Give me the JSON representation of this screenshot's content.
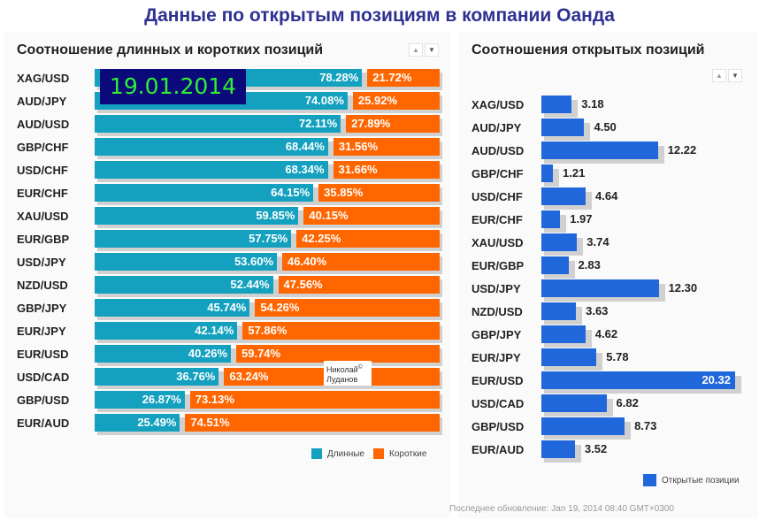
{
  "page": {
    "title": "Данные по открытым позициям в компании Оанда",
    "date_label": "19.01.2014",
    "watermark_line1": "Николай",
    "watermark_line2": "Луданов",
    "watermark_symbol": "©",
    "footer": "Последнее обновление: Jan 19, 2014 08:40 GMT+0300"
  },
  "arrows": {
    "up": "▲",
    "down": "▼"
  },
  "colors": {
    "long": "#14a1bf",
    "short": "#ff6600",
    "open": "#2067dc",
    "title": "#2e3192",
    "shadow": "#d0d0d0"
  },
  "chart_data": [
    {
      "type": "bar",
      "orientation": "horizontal-stacked-100",
      "title": "Соотношение длинных и коротких позиций",
      "categories": [
        "XAG/USD",
        "AUD/JPY",
        "AUD/USD",
        "GBP/CHF",
        "USD/CHF",
        "EUR/CHF",
        "XAU/USD",
        "EUR/GBP",
        "USD/JPY",
        "NZD/USD",
        "GBP/JPY",
        "EUR/JPY",
        "EUR/USD",
        "USD/CAD",
        "GBP/USD",
        "EUR/AUD"
      ],
      "series": [
        {
          "name": "Длинные",
          "values": [
            78.28,
            74.08,
            72.11,
            68.44,
            68.34,
            64.15,
            59.85,
            57.75,
            53.6,
            52.44,
            45.74,
            42.14,
            40.26,
            36.76,
            26.87,
            25.49
          ]
        },
        {
          "name": "Короткие",
          "values": [
            21.72,
            25.92,
            27.89,
            31.56,
            31.66,
            35.85,
            40.15,
            42.25,
            46.4,
            47.56,
            54.26,
            57.86,
            59.74,
            63.24,
            73.13,
            74.51
          ]
        }
      ],
      "labels_long": [
        "78.28%",
        "74.08%",
        "72.11%",
        "68.44%",
        "68.34%",
        "64.15%",
        "59.85%",
        "57.75%",
        "53.60%",
        "52.44%",
        "45.74%",
        "42.14%",
        "40.26%",
        "36.76%",
        "26.87%",
        "25.49%"
      ],
      "labels_short": [
        "21.72%",
        "25.92%",
        "27.89%",
        "31.56%",
        "31.66%",
        "35.85%",
        "40.15%",
        "42.25%",
        "46.40%",
        "47.56%",
        "54.26%",
        "57.86%",
        "59.74%",
        "63.24%",
        "73.13%",
        "74.51%"
      ],
      "legend": [
        "Длинные",
        "Короткие"
      ],
      "legend_position": "bottom-right",
      "xlim": [
        0,
        100
      ],
      "grid": false
    },
    {
      "type": "bar",
      "orientation": "horizontal",
      "title": "Соотношения открытых позиций",
      "categories": [
        "XAG/USD",
        "AUD/JPY",
        "AUD/USD",
        "GBP/CHF",
        "USD/CHF",
        "EUR/CHF",
        "XAU/USD",
        "EUR/GBP",
        "USD/JPY",
        "NZD/USD",
        "GBP/JPY",
        "EUR/JPY",
        "EUR/USD",
        "USD/CAD",
        "GBP/USD",
        "EUR/AUD"
      ],
      "series": [
        {
          "name": "Открытые позиции",
          "values": [
            3.18,
            4.5,
            12.22,
            1.21,
            4.64,
            1.97,
            3.74,
            2.83,
            12.3,
            3.63,
            4.62,
            5.78,
            20.32,
            6.82,
            8.73,
            3.52
          ]
        }
      ],
      "value_labels": [
        "3.18",
        "4.50",
        "12.22",
        "1.21",
        "4.64",
        "1.97",
        "3.74",
        "2.83",
        "12.30",
        "3.63",
        "4.62",
        "5.78",
        "20.32",
        "6.82",
        "8.73",
        "3.52"
      ],
      "legend": [
        "Открытые позиции"
      ],
      "legend_position": "bottom-right",
      "xlim": [
        0,
        20.32
      ],
      "grid": false
    }
  ]
}
